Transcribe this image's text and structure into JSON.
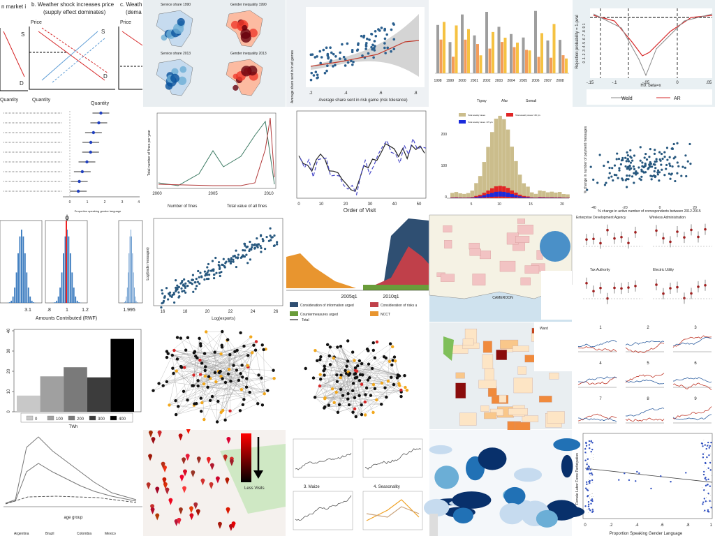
{
  "tiles": [
    {
      "texts": [
        "n market i",
        "b. Weather shock increases price",
        "(supply effect dominates)",
        "c. Weath",
        "(dema",
        "Price",
        "Price",
        "S",
        "S",
        "D",
        "D",
        "Quantity",
        "Quantity",
        "Quantity"
      ]
    },
    {
      "texts": [
        "Service share 1990",
        "Gender inequality 1990",
        "Service share 2013",
        "Gender inequality 2013"
      ]
    },
    {
      "texts": [
        "Average share sent in trust games",
        "Average share sent in risk game (risk tolerance)",
        ".2",
        ".4",
        ".6",
        ".8"
      ]
    },
    {
      "texts": [
        "1998",
        "1999",
        "2000",
        "2001",
        "2002",
        "2003",
        "2004",
        "2005",
        "2006",
        "2007",
        "2008",
        "Tigray",
        "Afar",
        "Somali"
      ]
    },
    {
      "texts": [
        "Rejection probability = 1-pval",
        "H0: beta=x",
        "Wald",
        "AR",
        "-.15",
        "-.1",
        "-.05",
        "0",
        ".05",
        "0 .1 .2 .3 .4 .5 .6 .7 .8 .9 1"
      ]
    },
    {
      "texts": [
        "Proportion speaking gender language",
        "0",
        "1",
        "2",
        "3",
        "4"
      ]
    },
    {
      "texts": [
        "Total number of fines per year",
        "2000",
        "2005",
        "2010",
        "Number of fines",
        "Total value of all fines"
      ]
    },
    {
      "texts": [
        "Order of Visit",
        "0",
        "10",
        "20",
        "30",
        "40",
        "50"
      ]
    },
    {
      "texts": [
        "Total weekly cases",
        "Total weekly cases <15 yrs",
        "Total weekly cases >60 yrs",
        "0",
        "100",
        "200",
        "5",
        "10",
        "15",
        "20"
      ]
    },
    {
      "texts": [
        "% change in number of payment messages",
        "% change in active number of correspondents between 2012-2015",
        "-40",
        "-20",
        "0",
        "20"
      ]
    },
    {
      "texts": [
        "ϕ",
        "Amounts Contributed (RWF)",
        "3.1",
        ".8",
        "1",
        "1.2",
        "1.995"
      ]
    },
    {
      "texts": [
        "Log(exports)",
        "16",
        "18",
        "20",
        "22",
        "24",
        "26",
        "Log(trade messages)"
      ]
    },
    {
      "texts": [
        "2005q1",
        "2010q1",
        "Consideration of information urged",
        "Consideration of risks u",
        "Countermeasures urged",
        "NCCT",
        "Total"
      ]
    },
    {
      "texts": [
        "CAMEROON"
      ]
    },
    {
      "texts": [
        "Enterprise Development Agency",
        "Wireless Administration",
        "Tax Authority",
        "Electric Utility"
      ]
    },
    {
      "texts": [
        "Ward"
      ]
    },
    {
      "texts": [
        "1",
        "2",
        "3",
        "4",
        "5",
        "6",
        "7",
        "8",
        "9"
      ]
    },
    {
      "texts": [
        "age group",
        "Argentina",
        "Brazil",
        "Colombia",
        "Mexico"
      ]
    },
    {
      "texts": [
        "Less Visits"
      ]
    },
    {
      "texts": [
        "3. Maize",
        "4. Seasonality"
      ]
    },
    {
      "texts": [
        "Female Labor Force Participation",
        "Proportion Speaking Gender Language",
        "0",
        ".2",
        ".4",
        ".6",
        ".8",
        "1"
      ]
    }
  ],
  "chart_data": {
    "type": "bar",
    "categories": [
      "0",
      "100",
      "200",
      "300",
      "400"
    ],
    "values": [
      8,
      17.5,
      22,
      17,
      36
    ],
    "colors": [
      "#c8c8c8",
      "#a0a0a0",
      "#7a7a7a",
      "#3c3c3c",
      "#000000"
    ],
    "ylim": [
      0,
      40
    ],
    "yticks": [
      0,
      10,
      20,
      30,
      40
    ],
    "x_label": "TWh"
  }
}
